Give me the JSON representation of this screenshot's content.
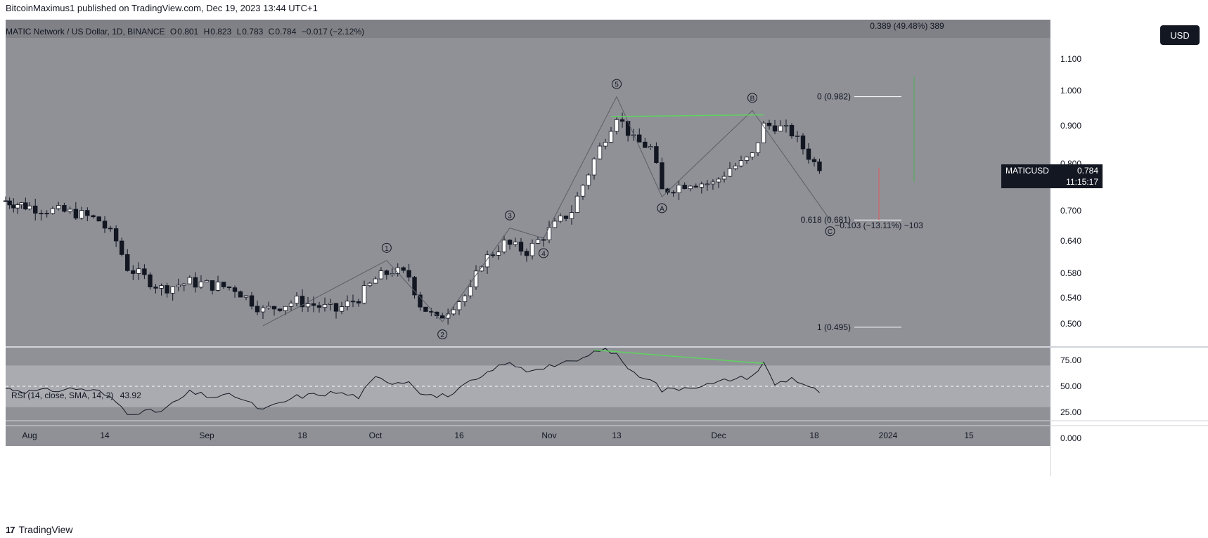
{
  "caption": "BitcoinMaximus1 published on TradingView.com, Dec 19, 2023 13:44 UTC+1",
  "header": {
    "symbol": "MATIC Network / US Dollar, 1D, BINANCE",
    "o_label": "O",
    "o": "0.801",
    "h_label": "H",
    "h": "0.823",
    "l_label": "L",
    "l": "0.783",
    "c_label": "C",
    "c": "0.784",
    "change": "−0.017 (−2.12%)"
  },
  "currency_button": "USD",
  "measure_top": "0.389 (49.48%) 389",
  "measure_bottom": "−0.103 (−13.11%) −103",
  "price_tag": {
    "symbol": "MATICUSD",
    "price": "0.784",
    "countdown": "11:15:17"
  },
  "rsi_label": {
    "text": "RSI (14, close, SMA, 14, 2)",
    "value": "43.92"
  },
  "footer": {
    "logo": "17",
    "brand": "TradingView"
  },
  "colors": {
    "background": "#8f9197",
    "up": "#ffffff",
    "down": "#131722",
    "divergence": "#5fd35f",
    "band": "#a9abb0"
  },
  "chart_data": [
    {
      "type": "candlestick",
      "title": "MATIC Network / US Dollar, 1D, BINANCE",
      "y_ticks": [
        "1.100",
        "1.000",
        "0.900",
        "0.800",
        "0.700",
        "0.640",
        "0.580",
        "0.540",
        "0.500"
      ],
      "ylim": [
        0.47,
        1.16
      ],
      "x_ticks": [
        "Aug",
        "14",
        "Sep",
        "18",
        "Oct",
        "16",
        "Nov",
        "13",
        "Dec",
        "18",
        "2024",
        "15"
      ],
      "x_tick_dates": [
        "2023-08-01",
        "2023-08-14",
        "2023-09-01",
        "2023-09-18",
        "2023-10-01",
        "2023-10-16",
        "2023-11-01",
        "2023-11-13",
        "2023-12-01",
        "2023-12-18",
        "2024-01-01",
        "2024-01-15"
      ],
      "close_path": {
        "dates": [
          "2023-07-26",
          "2023-08-01",
          "2023-08-05",
          "2023-08-09",
          "2023-08-13",
          "2023-08-16",
          "2023-08-18",
          "2023-08-24",
          "2023-08-29",
          "2023-09-02",
          "2023-09-06",
          "2023-09-11",
          "2023-09-17",
          "2023-09-24",
          "2023-09-28",
          "2023-10-01",
          "2023-10-04",
          "2023-10-07",
          "2023-10-09",
          "2023-10-12",
          "2023-10-15",
          "2023-10-18",
          "2023-10-20",
          "2023-10-24",
          "2023-10-28",
          "2023-11-01",
          "2023-11-05",
          "2023-11-08",
          "2023-11-10",
          "2023-11-13",
          "2023-11-16",
          "2023-11-19",
          "2023-11-21",
          "2023-11-26",
          "2023-11-30",
          "2023-12-03",
          "2023-12-05",
          "2023-12-07",
          "2023-12-09",
          "2023-12-11",
          "2023-12-14",
          "2023-12-17",
          "2023-12-19"
        ],
        "close": [
          0.72,
          0.708,
          0.7,
          0.695,
          0.68,
          0.64,
          0.59,
          0.555,
          0.565,
          0.56,
          0.555,
          0.52,
          0.535,
          0.52,
          0.54,
          0.57,
          0.585,
          0.575,
          0.53,
          0.505,
          0.53,
          0.55,
          0.6,
          0.635,
          0.62,
          0.66,
          0.7,
          0.78,
          0.84,
          0.93,
          0.86,
          0.84,
          0.74,
          0.76,
          0.755,
          0.79,
          0.8,
          0.82,
          0.9,
          0.9,
          0.88,
          0.82,
          0.784
        ]
      },
      "wave_labels": [
        {
          "label": "1",
          "date": "2023-10-03",
          "price": 0.603
        },
        {
          "label": "2",
          "date": "2023-10-13",
          "price": 0.503
        },
        {
          "label": "3",
          "date": "2023-10-25",
          "price": 0.665
        },
        {
          "label": "4",
          "date": "2023-10-31",
          "price": 0.638
        },
        {
          "label": "5",
          "date": "2023-11-13",
          "price": 0.982
        },
        {
          "label": "A",
          "date": "2023-11-21",
          "price": 0.728
        },
        {
          "label": "B",
          "date": "2023-12-07",
          "price": 0.942
        },
        {
          "label": "C",
          "date": "2023-12-21",
          "price": 0.681
        }
      ],
      "fibonacci": [
        {
          "ratio": "0",
          "label": "0 (0.982)",
          "price": 0.982
        },
        {
          "ratio": "0.618",
          "label": "0.618 (0.681)",
          "price": 0.681
        },
        {
          "ratio": "1",
          "label": "1 (0.495)",
          "price": 0.495
        }
      ],
      "last_price": 0.784
    },
    {
      "type": "line",
      "title": "RSI (14, close, SMA, 14, 2)",
      "last_value": 43.92,
      "y_ticks": [
        "75.00",
        "50.00",
        "25.00",
        "0.000"
      ],
      "ylim": [
        -10,
        88
      ],
      "band": [
        30,
        70
      ],
      "x_ticks": [
        "Aug",
        "14",
        "Sep",
        "18",
        "Oct",
        "16",
        "Nov",
        "13",
        "Dec",
        "18",
        "2024",
        "15"
      ],
      "x_tick_dates": [
        "2023-08-01",
        "2023-08-14",
        "2023-09-01",
        "2023-09-18",
        "2023-10-01",
        "2023-10-16",
        "2023-11-01",
        "2023-11-13",
        "2023-12-01",
        "2023-12-18",
        "2024-01-01",
        "2024-01-15"
      ],
      "rsi": {
        "dates": [
          "2023-07-26",
          "2023-08-01",
          "2023-08-05",
          "2023-08-09",
          "2023-08-13",
          "2023-08-16",
          "2023-08-18",
          "2023-08-24",
          "2023-08-29",
          "2023-09-02",
          "2023-09-06",
          "2023-09-11",
          "2023-09-17",
          "2023-09-24",
          "2023-09-28",
          "2023-10-01",
          "2023-10-04",
          "2023-10-07",
          "2023-10-09",
          "2023-10-12",
          "2023-10-15",
          "2023-10-18",
          "2023-10-20",
          "2023-10-24",
          "2023-10-28",
          "2023-11-01",
          "2023-11-05",
          "2023-11-08",
          "2023-11-10",
          "2023-11-13",
          "2023-11-16",
          "2023-11-19",
          "2023-11-21",
          "2023-11-26",
          "2023-11-30",
          "2023-12-03",
          "2023-12-05",
          "2023-12-07",
          "2023-12-09",
          "2023-12-11",
          "2023-12-14",
          "2023-12-17",
          "2023-12-19"
        ],
        "values": [
          48,
          45,
          46,
          48,
          45,
          35,
          25,
          26,
          44,
          40,
          41,
          27,
          40,
          44,
          40,
          58,
          54,
          55,
          45,
          40,
          43,
          54,
          58,
          73,
          65,
          70,
          73,
          79,
          86,
          81,
          62,
          58,
          46,
          50,
          52,
          57,
          58,
          60,
          72,
          52,
          58,
          50,
          43.92
        ]
      },
      "divergence": {
        "from": {
          "date": "2023-11-09",
          "value": 85
        },
        "to": {
          "date": "2023-12-09",
          "value": 72
        }
      }
    }
  ]
}
